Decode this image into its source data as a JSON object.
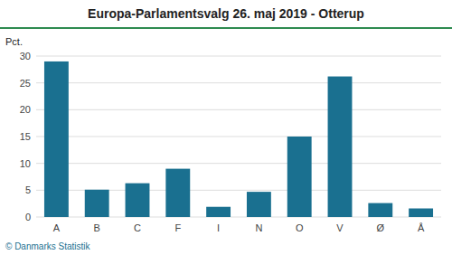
{
  "chart_data": {
    "type": "bar",
    "title": "Europa-Parlamentsvalg 26. maj 2019 - Otterup",
    "categories": [
      "A",
      "B",
      "C",
      "F",
      "I",
      "N",
      "O",
      "V",
      "Ø",
      "Å"
    ],
    "values": [
      29.0,
      5.1,
      6.3,
      9.0,
      1.9,
      4.7,
      15.0,
      26.2,
      2.6,
      1.6
    ],
    "color": "#1a7090",
    "ylabel": "Pct.",
    "ylim": [
      0,
      30
    ],
    "yticks": [
      0,
      5,
      10,
      15,
      20,
      25,
      30
    ],
    "grid": true,
    "annotations": [
      "© Danmarks Statistik"
    ]
  }
}
